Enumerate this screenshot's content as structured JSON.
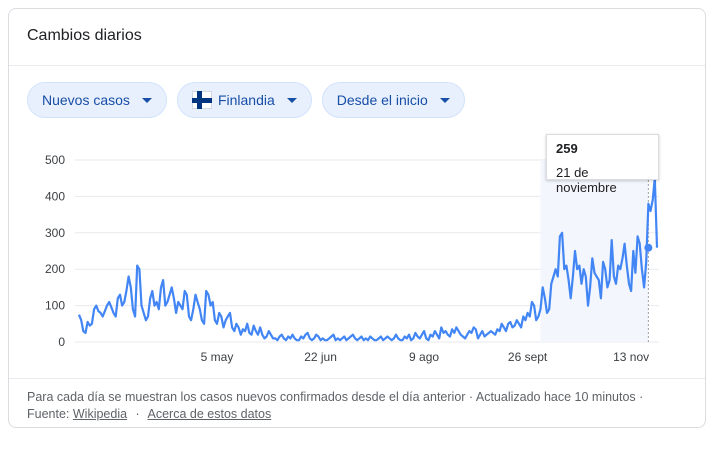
{
  "card": {
    "title": "Cambios diarios"
  },
  "filters": {
    "metric": "Nuevos casos",
    "region": "Finlandia",
    "range": "Desde el inicio",
    "region_flag": "finland-flag-icon",
    "caret_icon": "caret-down-icon"
  },
  "tooltip": {
    "value": "259",
    "date": "21 de noviembre"
  },
  "footer": {
    "note": "Para cada día se muestran los casos nuevos confirmados desde el día anterior · Actualizado hace 10 minutos ·",
    "source_label": "Fuente:",
    "source_link": "Wikipedia",
    "separator": "·",
    "about_link": "Acerca de estos datos"
  },
  "colors": {
    "line": "#4285f4",
    "grid": "#e8eaed",
    "chip_bg": "#e8f0fe",
    "chip_text": "#174ea6"
  },
  "chart_data": {
    "type": "line",
    "title": "Cambios diarios",
    "xlabel": "",
    "ylabel": "",
    "ylim": [
      0,
      500
    ],
    "yticks": [
      0,
      100,
      200,
      300,
      400,
      500
    ],
    "xticks": [
      {
        "label": "5 may",
        "day": 64
      },
      {
        "label": "22 jun",
        "day": 112
      },
      {
        "label": "9 ago",
        "day": 160
      },
      {
        "label": "26 sept",
        "day": 208
      },
      {
        "label": "13 nov",
        "day": 256
      }
    ],
    "grid": true,
    "highlight": {
      "day": 264,
      "value": 259
    },
    "series": [
      {
        "values": [
          75,
          60,
          30,
          25,
          55,
          45,
          50,
          90,
          100,
          85,
          80,
          70,
          85,
          100,
          110,
          95,
          80,
          70,
          120,
          130,
          100,
          110,
          140,
          180,
          150,
          90,
          70,
          210,
          200,
          100,
          80,
          60,
          70,
          120,
          140,
          100,
          110,
          90,
          150,
          170,
          100,
          110,
          130,
          150,
          120,
          80,
          110,
          100,
          90,
          140,
          130,
          70,
          60,
          90,
          130,
          110,
          90,
          60,
          50,
          140,
          130,
          100,
          110,
          60,
          50,
          80,
          70,
          40,
          60,
          70,
          80,
          40,
          30,
          50,
          40,
          20,
          35,
          30,
          50,
          25,
          20,
          45,
          30,
          20,
          40,
          20,
          10,
          15,
          30,
          20,
          10,
          10,
          5,
          15,
          20,
          10,
          5,
          15,
          10,
          20,
          10,
          5,
          5,
          15,
          10,
          20,
          25,
          10,
          5,
          10,
          20,
          15,
          5,
          10,
          5,
          5,
          10,
          15,
          20,
          5,
          10,
          5,
          10,
          15,
          5,
          10,
          15,
          20,
          10,
          5,
          10,
          15,
          5,
          10,
          5,
          15,
          10,
          5,
          5,
          10,
          15,
          5,
          10,
          15,
          10,
          5,
          10,
          20,
          10,
          5,
          5,
          15,
          10,
          20,
          5,
          10,
          25,
          15,
          10,
          20,
          30,
          10,
          5,
          20,
          15,
          30,
          20,
          10,
          40,
          25,
          30,
          20,
          15,
          35,
          25,
          40,
          30,
          20,
          15,
          10,
          20,
          30,
          25,
          40,
          35,
          10,
          20,
          30,
          15,
          20,
          25,
          30,
          25,
          20,
          35,
          30,
          50,
          40,
          30,
          50,
          55,
          40,
          45,
          60,
          50,
          40,
          70,
          60,
          80,
          70,
          110,
          100,
          60,
          70,
          90,
          150,
          120,
          80,
          90,
          160,
          180,
          200,
          180,
          290,
          300,
          200,
          210,
          170,
          120,
          180,
          250,
          200,
          210,
          160,
          200,
          180,
          100,
          150,
          230,
          190,
          180,
          170,
          120,
          220,
          200,
          150,
          170,
          280,
          180,
          160,
          210,
          200,
          230,
          270,
          210,
          160,
          140,
          250,
          190,
          290,
          270,
          200,
          150,
          220,
          380,
          360,
          390,
          450,
          259
        ]
      }
    ]
  }
}
